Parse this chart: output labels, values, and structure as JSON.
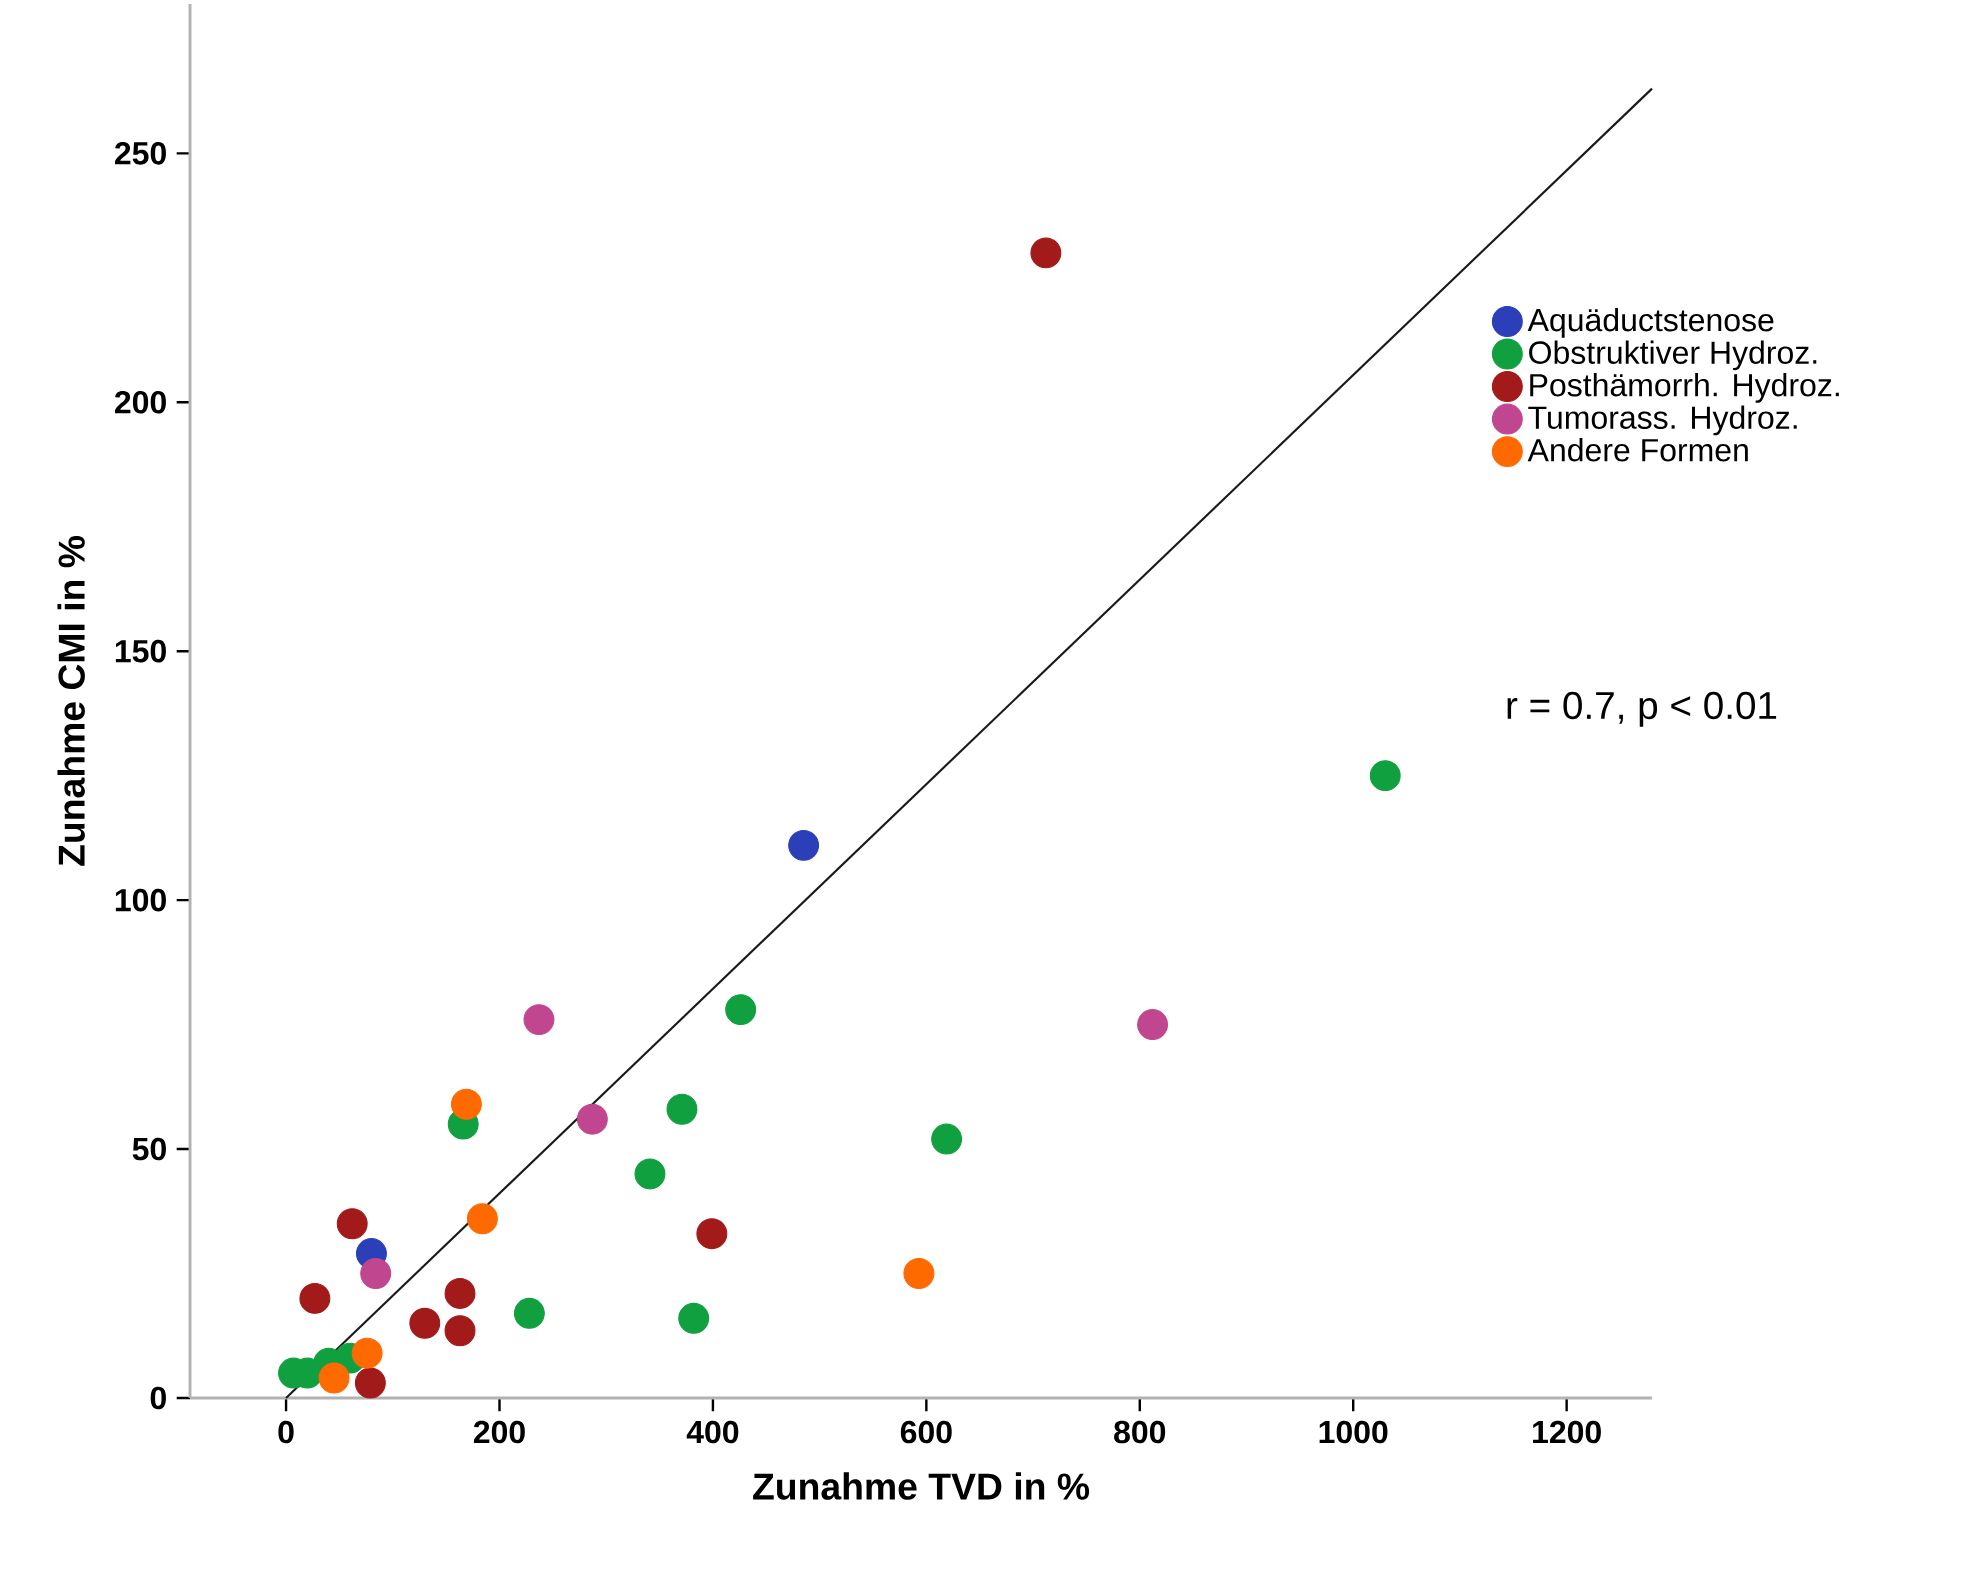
{
  "chart_data": {
    "type": "scatter",
    "xlabel": "Zunahme TVD in %",
    "ylabel": "Zunahme CMI in %",
    "xlim": [
      -90,
      1280
    ],
    "ylim": [
      0,
      280
    ],
    "xticks": [
      0,
      200,
      400,
      600,
      800,
      1000,
      1200
    ],
    "yticks": [
      0,
      50,
      100,
      150,
      200,
      250
    ],
    "grid": false,
    "legend": "top right",
    "marker": "circle",
    "annotations": [
      "r = 0.7, p < 0.01"
    ],
    "series": [
      {
        "name": "Aquäductstenose",
        "color": "#2a3fb8",
        "x": [
          80,
          485
        ],
        "values": [
          29,
          111
        ]
      },
      {
        "name": "Obstruktiver Hydroz.",
        "color": "#10a040",
        "x": [
          7,
          20,
          40,
          60,
          166,
          228,
          341,
          371,
          382,
          426,
          619,
          1030
        ],
        "values": [
          5,
          5,
          7,
          8,
          55,
          17,
          45,
          58,
          16,
          78,
          52,
          125
        ]
      },
      {
        "name": "Posthämorrh. Hydroz.",
        "color": "#a31a1a",
        "x": [
          27,
          62,
          79,
          130,
          163,
          163,
          399,
          712
        ],
        "values": [
          20,
          35,
          3,
          15,
          21,
          13.5,
          33,
          230
        ]
      },
      {
        "name": "Tumorass. Hydroz.",
        "color": "#c0478f",
        "x": [
          84,
          237,
          287,
          812
        ],
        "values": [
          25,
          76,
          56,
          75
        ]
      },
      {
        "name": "Andere Formen",
        "color": "#ff6a00",
        "x": [
          45,
          76,
          169,
          184,
          593
        ],
        "values": [
          4,
          9,
          59,
          36,
          25
        ]
      },
      {
        "type": "line",
        "color": "#1a1a1a",
        "x": [
          0,
          1280
        ],
        "values": [
          0,
          263
        ],
        "line_style": "solid",
        "marker": "none"
      }
    ]
  }
}
